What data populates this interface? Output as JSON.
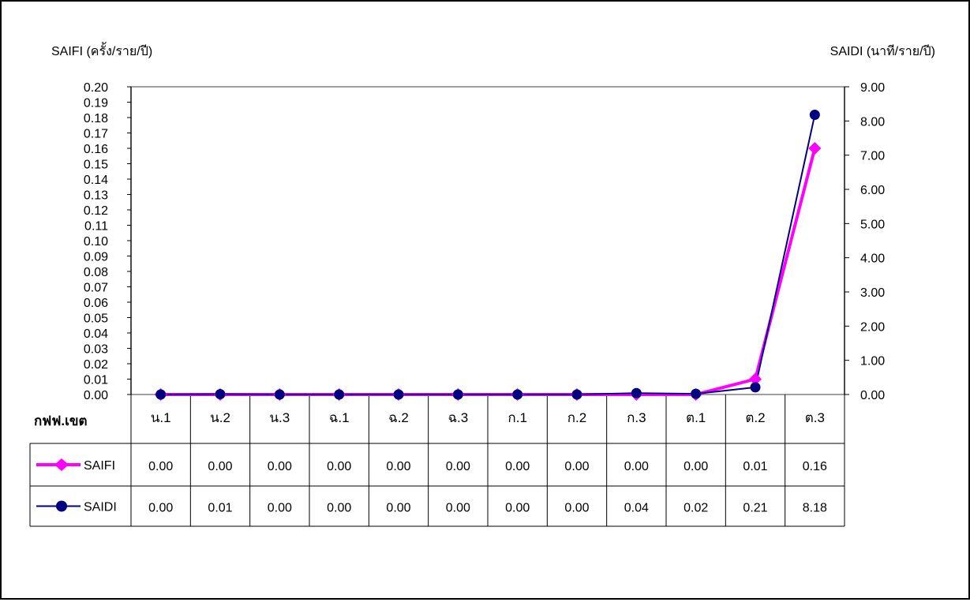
{
  "chart_data": {
    "type": "line",
    "left_axis_title": "SAIFI  (ครั้ง/ราย/ปี)",
    "right_axis_title": "SAIDI  (นาที/ราย/ปี)",
    "category_header": "กฟฟ.เขต",
    "categories": [
      "น.1",
      "น.2",
      "น.3",
      "ฉ.1",
      "ฉ.2",
      "ฉ.3",
      "ก.1",
      "ก.2",
      "ก.3",
      "ต.1",
      "ต.2",
      "ต.3"
    ],
    "y_left": {
      "min": 0,
      "max": 0.2,
      "step": 0.01,
      "decimals": 2
    },
    "y_right": {
      "min": 0,
      "max": 9,
      "step": 1,
      "decimals": 2
    },
    "series": [
      {
        "name": "SAIFI",
        "axis": "left",
        "color": "#ff00ff",
        "marker": "diamond",
        "values": [
          0.0,
          0.0,
          0.0,
          0.0,
          0.0,
          0.0,
          0.0,
          0.0,
          0.0,
          0.0,
          0.01,
          0.16
        ],
        "labels": [
          "0.00",
          "0.00",
          "0.00",
          "0.00",
          "0.00",
          "0.00",
          "0.00",
          "0.00",
          "0.00",
          "0.00",
          "0.01",
          "0.16"
        ]
      },
      {
        "name": "SAIDI",
        "axis": "right",
        "color": "#000080",
        "marker": "circle",
        "values": [
          0.0,
          0.01,
          0.0,
          0.0,
          0.0,
          0.0,
          0.0,
          0.0,
          0.04,
          0.02,
          0.21,
          8.18
        ],
        "labels": [
          "0.00",
          "0.01",
          "0.00",
          "0.00",
          "0.00",
          "0.00",
          "0.00",
          "0.00",
          "0.04",
          "0.02",
          "0.21",
          "8.18"
        ]
      }
    ],
    "grid": false,
    "legend_placement": "data-table"
  }
}
